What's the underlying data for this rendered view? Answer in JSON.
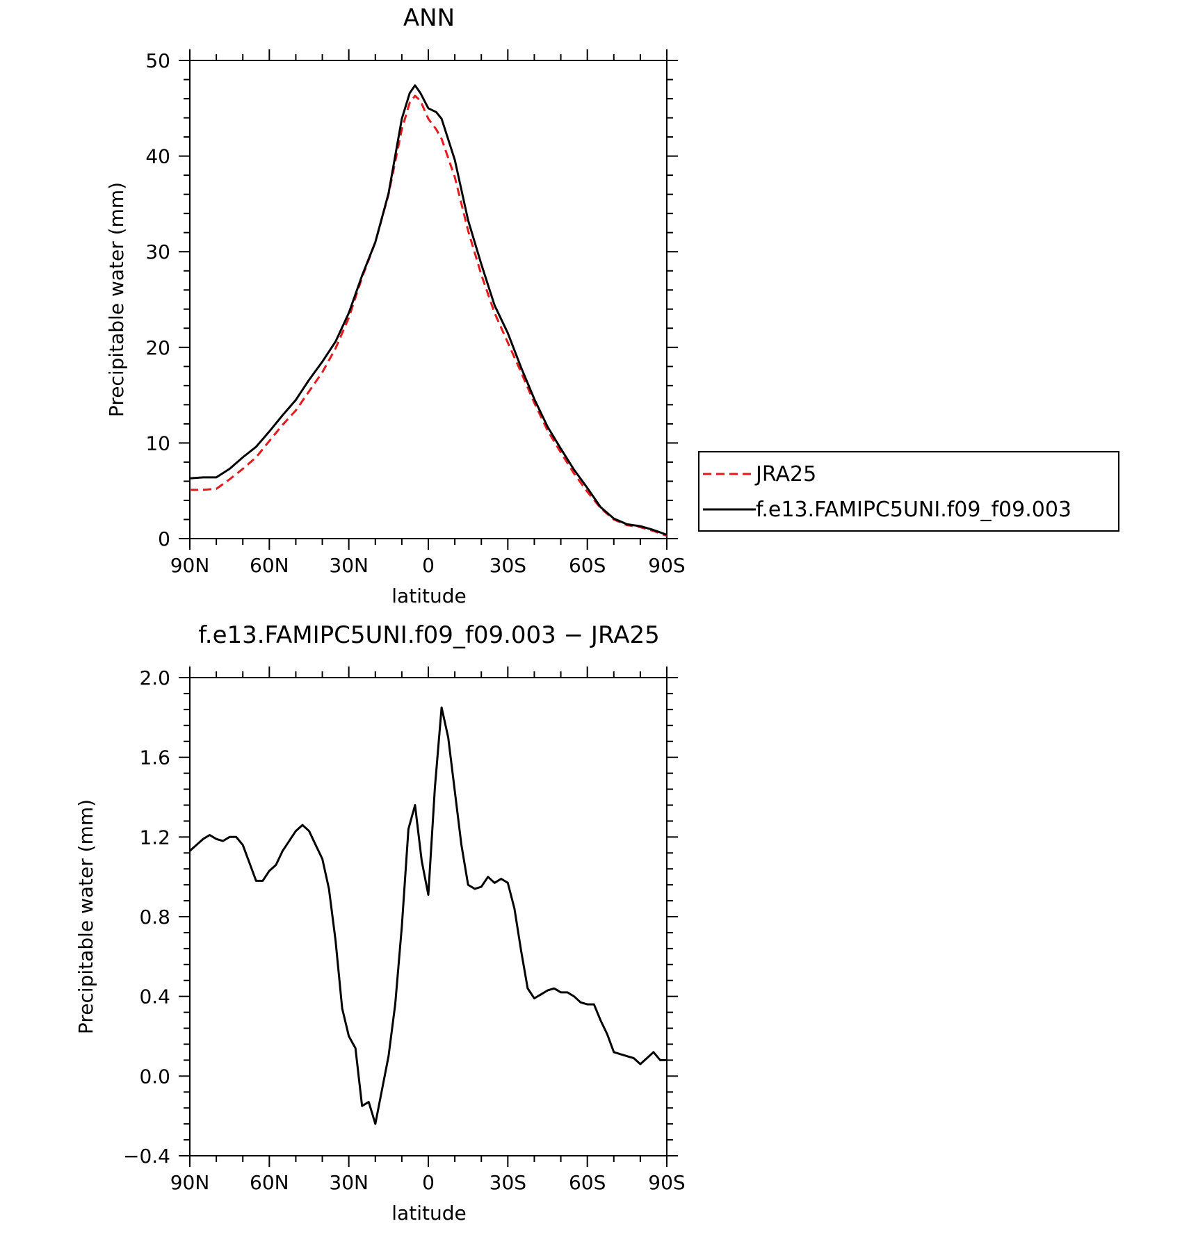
{
  "colors": {
    "JRA25": "#e41a1c",
    "model": "#000000"
  },
  "chart_data": [
    {
      "type": "line",
      "title": "ANN",
      "xlabel": "latitude",
      "ylabel": "Precipitable water (mm)",
      "x_ticks": [
        {
          "v": -90,
          "label": "90N"
        },
        {
          "v": -60,
          "label": "60N"
        },
        {
          "v": -30,
          "label": "30N"
        },
        {
          "v": 0,
          "label": "0"
        },
        {
          "v": 30,
          "label": "30S"
        },
        {
          "v": 60,
          "label": "60S"
        },
        {
          "v": 90,
          "label": "90S"
        }
      ],
      "xlim": [
        -90,
        90
      ],
      "ylim": [
        0,
        50
      ],
      "y_ticks": [
        0,
        10,
        20,
        30,
        40,
        50
      ],
      "legend": {
        "placement": "right",
        "entries": [
          "JRA25",
          "f.e13.FAMIPC5UNI.f09_f09.003"
        ]
      },
      "series": [
        {
          "name": "JRA25",
          "style": "dashed",
          "x": [
            -90,
            -85,
            -80,
            -75,
            -70,
            -65,
            -60,
            -55,
            -50,
            -45,
            -40,
            -35,
            -30,
            -25,
            -20,
            -15,
            -10,
            -7,
            -5,
            -3,
            0,
            3,
            5,
            10,
            15,
            20,
            25,
            30,
            35,
            40,
            45,
            50,
            55,
            60,
            65,
            70,
            75,
            80,
            85,
            90
          ],
          "y": [
            5.1,
            5.1,
            5.2,
            6.2,
            7.3,
            8.5,
            10.2,
            11.9,
            13.4,
            15.4,
            17.4,
            19.9,
            23.1,
            27.3,
            31.0,
            36.0,
            42.8,
            45.6,
            46.3,
            45.8,
            43.9,
            42.8,
            41.8,
            37.8,
            32.2,
            27.6,
            23.6,
            20.5,
            17.4,
            14.2,
            11.3,
            9.0,
            6.8,
            4.9,
            3.2,
            2.0,
            1.4,
            1.2,
            0.8,
            0.3
          ]
        },
        {
          "name": "f.e13.FAMIPC5UNI.f09_f09.003",
          "style": "solid",
          "x": [
            -90,
            -85,
            -80,
            -75,
            -70,
            -65,
            -60,
            -55,
            -50,
            -45,
            -40,
            -35,
            -30,
            -25,
            -20,
            -15,
            -10,
            -7,
            -5,
            -3,
            0,
            3,
            5,
            10,
            15,
            20,
            25,
            30,
            35,
            40,
            45,
            50,
            55,
            60,
            65,
            70,
            75,
            80,
            85,
            90
          ],
          "y": [
            6.3,
            6.4,
            6.4,
            7.3,
            8.5,
            9.6,
            11.2,
            12.9,
            14.5,
            16.6,
            18.5,
            20.6,
            23.6,
            27.5,
            31.0,
            36.1,
            43.9,
            46.6,
            47.4,
            46.6,
            45.0,
            44.6,
            43.9,
            39.6,
            33.3,
            28.7,
            24.4,
            21.5,
            17.9,
            14.6,
            11.7,
            9.4,
            7.2,
            5.3,
            3.3,
            2.1,
            1.5,
            1.3,
            0.9,
            0.4
          ]
        }
      ]
    },
    {
      "type": "line",
      "title": "f.e13.FAMIPC5UNI.f09_f09.003 − JRA25",
      "xlabel": "latitude",
      "ylabel": "Precipitable water (mm)",
      "x_ticks": [
        {
          "v": -90,
          "label": "90N"
        },
        {
          "v": -60,
          "label": "60N"
        },
        {
          "v": -30,
          "label": "30N"
        },
        {
          "v": 0,
          "label": "0"
        },
        {
          "v": 30,
          "label": "30S"
        },
        {
          "v": 60,
          "label": "60S"
        },
        {
          "v": 90,
          "label": "90S"
        }
      ],
      "xlim": [
        -90,
        90
      ],
      "ylim": [
        -0.4,
        2.0
      ],
      "y_ticks": [
        -0.4,
        0.0,
        0.4,
        0.8,
        1.2,
        1.6,
        2.0
      ],
      "y_tick_labels": [
        "−0.4",
        "0.0",
        "0.4",
        "0.8",
        "1.2",
        "1.6",
        "2.0"
      ],
      "series": [
        {
          "name": "f.e13.FAMIPC5UNI.f09_f09.003 − JRA25",
          "style": "solid",
          "x": [
            -90,
            -87.5,
            -85,
            -82.5,
            -80,
            -77.5,
            -75,
            -72.5,
            -70,
            -67.5,
            -65,
            -62.5,
            -60,
            -57.5,
            -55,
            -52.5,
            -50,
            -47.5,
            -45,
            -42.5,
            -40,
            -37.5,
            -35,
            -32.5,
            -30,
            -27.5,
            -25,
            -22.5,
            -20,
            -17.5,
            -15,
            -12.5,
            -10,
            -7.5,
            -5,
            -2.5,
            0,
            2.5,
            5,
            7.5,
            10,
            12.5,
            15,
            17.5,
            20,
            22.5,
            25,
            27.5,
            30,
            32.5,
            35,
            37.5,
            40,
            42.5,
            45,
            47.5,
            50,
            52.5,
            55,
            57.5,
            60,
            62.5,
            65,
            67.5,
            70,
            72.5,
            75,
            77.5,
            80,
            82.5,
            85,
            87.5,
            90
          ],
          "y": [
            1.13,
            1.16,
            1.19,
            1.21,
            1.19,
            1.18,
            1.2,
            1.2,
            1.16,
            1.07,
            0.98,
            0.98,
            1.03,
            1.06,
            1.13,
            1.18,
            1.23,
            1.26,
            1.23,
            1.16,
            1.09,
            0.94,
            0.68,
            0.34,
            0.2,
            0.14,
            -0.15,
            -0.13,
            -0.24,
            -0.07,
            0.1,
            0.36,
            0.75,
            1.24,
            1.36,
            1.08,
            0.91,
            1.45,
            1.85,
            1.7,
            1.43,
            1.16,
            0.96,
            0.94,
            0.95,
            1.0,
            0.97,
            0.99,
            0.97,
            0.84,
            0.63,
            0.44,
            0.39,
            0.41,
            0.43,
            0.44,
            0.42,
            0.42,
            0.4,
            0.37,
            0.36,
            0.36,
            0.28,
            0.21,
            0.12,
            0.11,
            0.1,
            0.09,
            0.06,
            0.09,
            0.12,
            0.08,
            0.08
          ]
        }
      ]
    }
  ]
}
